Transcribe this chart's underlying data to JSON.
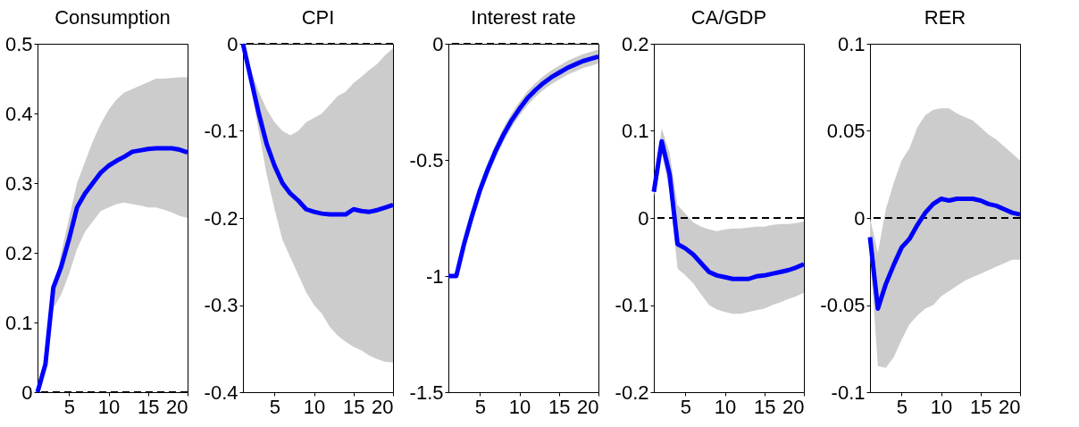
{
  "chart_data": [
    {
      "type": "line",
      "title": "Consumption",
      "x": [
        1,
        2,
        3,
        4,
        5,
        6,
        7,
        8,
        9,
        10,
        11,
        12,
        13,
        14,
        15,
        16,
        17,
        18,
        19,
        20
      ],
      "xlim": [
        1,
        20
      ],
      "xticks": [
        5,
        10,
        15,
        20
      ],
      "ylim": [
        0,
        0.5
      ],
      "yticks": [
        0,
        0.1,
        0.2,
        0.3,
        0.4,
        0.5
      ],
      "grid": false,
      "line_style": "solid",
      "marker": "none",
      "series": [
        {
          "color": "#0000ff",
          "values": [
            0,
            0.04,
            0.15,
            0.18,
            0.22,
            0.265,
            0.285,
            0.3,
            0.315,
            0.325,
            0.332,
            0.338,
            0.345,
            0.347,
            0.349,
            0.35,
            0.35,
            0.35,
            0.348,
            0.344
          ],
          "upper": [
            0,
            0.04,
            0.14,
            0.2,
            0.25,
            0.3,
            0.33,
            0.36,
            0.385,
            0.405,
            0.42,
            0.43,
            0.435,
            0.44,
            0.445,
            0.45,
            0.45,
            0.451,
            0.452,
            0.452
          ],
          "lower": [
            0,
            0.035,
            0.12,
            0.14,
            0.17,
            0.205,
            0.23,
            0.245,
            0.26,
            0.265,
            0.27,
            0.272,
            0.27,
            0.268,
            0.265,
            0.265,
            0.262,
            0.258,
            0.253,
            0.25
          ]
        }
      ],
      "ref_lines": [
        {
          "axis": "y",
          "value": 0,
          "line_style": "dashed",
          "color": "#000000"
        }
      ]
    },
    {
      "type": "line",
      "title": "CPI",
      "x": [
        1,
        2,
        3,
        4,
        5,
        6,
        7,
        8,
        9,
        10,
        11,
        12,
        13,
        14,
        15,
        16,
        17,
        18,
        19,
        20
      ],
      "xlim": [
        1,
        20
      ],
      "xticks": [
        5,
        10,
        15,
        20
      ],
      "ylim": [
        -0.4,
        0
      ],
      "yticks": [
        -0.4,
        -0.3,
        -0.2,
        -0.1,
        0
      ],
      "grid": false,
      "line_style": "solid",
      "marker": "none",
      "series": [
        {
          "color": "#0000ff",
          "values": [
            0,
            -0.04,
            -0.08,
            -0.115,
            -0.14,
            -0.16,
            -0.172,
            -0.18,
            -0.19,
            -0.193,
            -0.195,
            -0.196,
            -0.196,
            -0.196,
            -0.19,
            -0.192,
            -0.193,
            -0.191,
            -0.188,
            -0.185
          ],
          "upper": [
            0,
            -0.03,
            -0.055,
            -0.075,
            -0.09,
            -0.1,
            -0.105,
            -0.1,
            -0.09,
            -0.085,
            -0.08,
            -0.07,
            -0.06,
            -0.055,
            -0.045,
            -0.038,
            -0.03,
            -0.023,
            -0.013,
            -0.005
          ],
          "lower": [
            0,
            -0.05,
            -0.1,
            -0.15,
            -0.19,
            -0.225,
            -0.245,
            -0.265,
            -0.285,
            -0.3,
            -0.31,
            -0.325,
            -0.335,
            -0.342,
            -0.348,
            -0.352,
            -0.358,
            -0.362,
            -0.365,
            -0.366
          ]
        }
      ],
      "ref_lines": [
        {
          "axis": "y",
          "value": 0,
          "line_style": "dashed",
          "color": "#000000"
        }
      ]
    },
    {
      "type": "line",
      "title": "Interest rate",
      "x": [
        1,
        2,
        3,
        4,
        5,
        6,
        7,
        8,
        9,
        10,
        11,
        12,
        13,
        14,
        15,
        16,
        17,
        18,
        19,
        20
      ],
      "xlim": [
        1,
        20
      ],
      "xticks": [
        5,
        10,
        15,
        20
      ],
      "ylim": [
        -1.5,
        0
      ],
      "yticks": [
        -1.5,
        -1,
        -0.5,
        0
      ],
      "grid": false,
      "line_style": "solid",
      "marker": "none",
      "series": [
        {
          "color": "#0000ff",
          "values": [
            -1,
            -1,
            -0.86,
            -0.74,
            -0.63,
            -0.54,
            -0.46,
            -0.39,
            -0.33,
            -0.28,
            -0.235,
            -0.2,
            -0.17,
            -0.145,
            -0.125,
            -0.105,
            -0.09,
            -0.075,
            -0.065,
            -0.055
          ],
          "upper": [
            -1,
            -1,
            -0.83,
            -0.71,
            -0.6,
            -0.51,
            -0.43,
            -0.36,
            -0.3,
            -0.25,
            -0.205,
            -0.17,
            -0.14,
            -0.115,
            -0.095,
            -0.075,
            -0.06,
            -0.045,
            -0.035,
            -0.025
          ],
          "lower": [
            -1,
            -1,
            -0.89,
            -0.77,
            -0.66,
            -0.57,
            -0.49,
            -0.42,
            -0.36,
            -0.31,
            -0.265,
            -0.23,
            -0.2,
            -0.175,
            -0.155,
            -0.135,
            -0.12,
            -0.105,
            -0.095,
            -0.085
          ]
        }
      ],
      "ref_lines": [
        {
          "axis": "y",
          "value": 0,
          "line_style": "dashed",
          "color": "#000000"
        }
      ]
    },
    {
      "type": "line",
      "title": "CA/GDP",
      "x": [
        1,
        2,
        3,
        4,
        5,
        6,
        7,
        8,
        9,
        10,
        11,
        12,
        13,
        14,
        15,
        16,
        17,
        18,
        19,
        20
      ],
      "xlim": [
        1,
        20
      ],
      "xticks": [
        5,
        10,
        15,
        20
      ],
      "ylim": [
        -0.2,
        0.2
      ],
      "yticks": [
        -0.2,
        -0.1,
        0,
        0.1,
        0.2
      ],
      "grid": false,
      "line_style": "solid",
      "marker": "none",
      "series": [
        {
          "color": "#0000ff",
          "values": [
            0.03,
            0.088,
            0.05,
            -0.03,
            -0.035,
            -0.042,
            -0.052,
            -0.062,
            -0.066,
            -0.068,
            -0.07,
            -0.07,
            -0.07,
            -0.067,
            -0.066,
            -0.064,
            -0.062,
            -0.06,
            -0.057,
            -0.053
          ],
          "upper": [
            0.04,
            0.103,
            0.075,
            0.015,
            0.005,
            -0.005,
            -0.01,
            -0.013,
            -0.015,
            -0.013,
            -0.012,
            -0.012,
            -0.011,
            -0.01,
            -0.01,
            -0.008,
            -0.007,
            -0.007,
            -0.006,
            -0.004
          ],
          "lower": [
            0.025,
            0.075,
            0.03,
            -0.058,
            -0.066,
            -0.075,
            -0.088,
            -0.1,
            -0.105,
            -0.108,
            -0.11,
            -0.11,
            -0.108,
            -0.106,
            -0.104,
            -0.1,
            -0.097,
            -0.093,
            -0.09,
            -0.086
          ]
        }
      ],
      "ref_lines": [
        {
          "axis": "y",
          "value": 0,
          "line_style": "dashed",
          "color": "#000000"
        }
      ]
    },
    {
      "type": "line",
      "title": "RER",
      "x": [
        1,
        2,
        3,
        4,
        5,
        6,
        7,
        8,
        9,
        10,
        11,
        12,
        13,
        14,
        15,
        16,
        17,
        18,
        19,
        20
      ],
      "xlim": [
        1,
        20
      ],
      "xticks": [
        5,
        10,
        15,
        20
      ],
      "ylim": [
        -0.1,
        0.1
      ],
      "yticks": [
        -0.1,
        -0.05,
        0,
        0.05,
        0.1
      ],
      "grid": false,
      "line_style": "solid",
      "marker": "none",
      "series": [
        {
          "color": "#0000ff",
          "values": [
            -0.011,
            -0.052,
            -0.038,
            -0.027,
            -0.017,
            -0.012,
            -0.004,
            0.003,
            0.008,
            0.011,
            0.01,
            0.011,
            0.011,
            0.011,
            0.01,
            0.008,
            0.007,
            0.005,
            0.003,
            0.002
          ],
          "upper": [
            0,
            -0.02,
            0.005,
            0.02,
            0.033,
            0.04,
            0.052,
            0.059,
            0.062,
            0.063,
            0.063,
            0.06,
            0.058,
            0.056,
            0.052,
            0.048,
            0.045,
            0.041,
            0.037,
            0.033
          ],
          "lower": [
            -0.02,
            -0.085,
            -0.086,
            -0.08,
            -0.07,
            -0.061,
            -0.056,
            -0.052,
            -0.05,
            -0.045,
            -0.042,
            -0.039,
            -0.036,
            -0.034,
            -0.032,
            -0.03,
            -0.028,
            -0.026,
            -0.024,
            -0.024
          ]
        }
      ],
      "ref_lines": [
        {
          "axis": "y",
          "value": 0,
          "line_style": "dashed",
          "color": "#000000"
        }
      ]
    }
  ]
}
